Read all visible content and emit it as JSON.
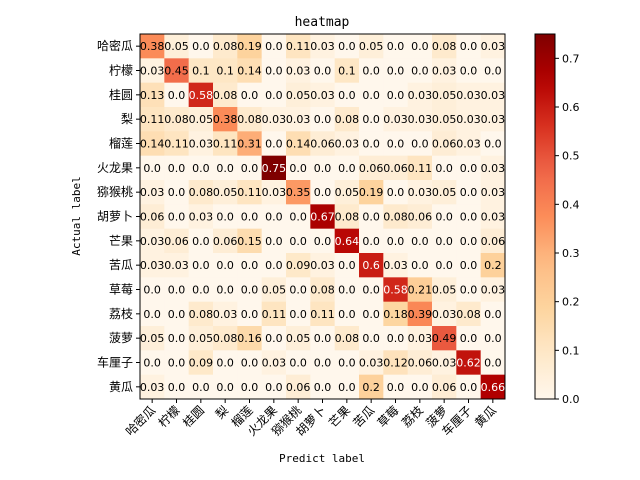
{
  "chart_data": {
    "type": "heatmap",
    "title": "heatmap",
    "xlabel": "Predict label",
    "ylabel": "Actual label",
    "labels": [
      "哈密瓜",
      "柠檬",
      "桂圆",
      "梨",
      "榴莲",
      "火龙果",
      "猕猴桃",
      "胡萝卜",
      "芒果",
      "苦瓜",
      "草莓",
      "荔枝",
      "菠萝",
      "车厘子",
      "黄瓜"
    ],
    "matrix": [
      [
        0.38,
        0.05,
        0.0,
        0.08,
        0.19,
        0.0,
        0.11,
        0.03,
        0.0,
        0.05,
        0.0,
        0.0,
        0.08,
        0.0,
        0.03
      ],
      [
        0.03,
        0.45,
        0.1,
        0.1,
        0.14,
        0.0,
        0.03,
        0.0,
        0.1,
        0.0,
        0.0,
        0.0,
        0.03,
        0.0,
        0.0
      ],
      [
        0.13,
        0.0,
        0.58,
        0.08,
        0.0,
        0.0,
        0.05,
        0.03,
        0.0,
        0.0,
        0.0,
        0.03,
        0.05,
        0.03,
        0.03
      ],
      [
        0.11,
        0.08,
        0.05,
        0.38,
        0.08,
        0.03,
        0.03,
        0.0,
        0.08,
        0.0,
        0.03,
        0.03,
        0.05,
        0.03,
        0.03
      ],
      [
        0.14,
        0.11,
        0.03,
        0.11,
        0.31,
        0.0,
        0.14,
        0.06,
        0.03,
        0.0,
        0.0,
        0.0,
        0.06,
        0.03,
        0.0
      ],
      [
        0.0,
        0.0,
        0.0,
        0.0,
        0.0,
        0.75,
        0.0,
        0.0,
        0.0,
        0.06,
        0.06,
        0.11,
        0.0,
        0.0,
        0.03
      ],
      [
        0.03,
        0.0,
        0.08,
        0.05,
        0.11,
        0.03,
        0.35,
        0.0,
        0.05,
        0.19,
        0.0,
        0.03,
        0.05,
        0.0,
        0.03
      ],
      [
        0.06,
        0.0,
        0.03,
        0.0,
        0.0,
        0.0,
        0.0,
        0.67,
        0.08,
        0.0,
        0.08,
        0.06,
        0.0,
        0.0,
        0.03
      ],
      [
        0.03,
        0.06,
        0.0,
        0.06,
        0.15,
        0.0,
        0.0,
        0.0,
        0.64,
        0.0,
        0.0,
        0.0,
        0.0,
        0.0,
        0.06
      ],
      [
        0.03,
        0.03,
        0.0,
        0.0,
        0.0,
        0.0,
        0.09,
        0.03,
        0.0,
        0.6,
        0.03,
        0.0,
        0.0,
        0.0,
        0.2
      ],
      [
        0.0,
        0.0,
        0.0,
        0.0,
        0.0,
        0.05,
        0.0,
        0.08,
        0.0,
        0.0,
        0.58,
        0.21,
        0.05,
        0.0,
        0.03
      ],
      [
        0.0,
        0.0,
        0.08,
        0.03,
        0.0,
        0.11,
        0.0,
        0.11,
        0.0,
        0.0,
        0.18,
        0.39,
        0.03,
        0.08,
        0.0
      ],
      [
        0.05,
        0.0,
        0.05,
        0.08,
        0.16,
        0.0,
        0.05,
        0.0,
        0.08,
        0.0,
        0.0,
        0.03,
        0.49,
        0.0,
        0.0
      ],
      [
        0.0,
        0.0,
        0.09,
        0.0,
        0.0,
        0.03,
        0.0,
        0.0,
        0.0,
        0.03,
        0.12,
        0.06,
        0.03,
        0.62,
        0.0
      ],
      [
        0.03,
        0.0,
        0.0,
        0.0,
        0.0,
        0.0,
        0.06,
        0.0,
        0.0,
        0.2,
        0.0,
        0.0,
        0.06,
        0.0,
        0.66
      ]
    ],
    "cell_text": [
      [
        "0.38",
        "0.05",
        "0.0",
        "0.08",
        "0.19",
        "0.0",
        "0.11",
        "0.03",
        "0.0",
        "0.05",
        "0.0",
        "0.0",
        "0.08",
        "0.0",
        "0.03"
      ],
      [
        "0.03",
        "0.45",
        "0.1",
        "0.1",
        "0.14",
        "0.0",
        "0.03",
        "0.0",
        "0.1",
        "0.0",
        "0.0",
        "0.0",
        "0.03",
        "0.0",
        "0.0"
      ],
      [
        "0.13",
        "0.0",
        "0.58",
        "0.08",
        "0.0",
        "0.0",
        "0.05",
        "0.03",
        "0.0",
        "0.0",
        "0.0",
        "0.03",
        "0.05",
        "0.03",
        "0.03"
      ],
      [
        "0.11",
        "0.08",
        "0.05",
        "0.38",
        "0.08",
        "0.03",
        "0.03",
        "0.0",
        "0.08",
        "0.0",
        "0.03",
        "0.03",
        "0.05",
        "0.03",
        "0.03"
      ],
      [
        "0.14",
        "0.11",
        "0.03",
        "0.11",
        "0.31",
        "0.0",
        "0.14",
        "0.06",
        "0.03",
        "0.0",
        "0.0",
        "0.0",
        "0.06",
        "0.03",
        "0.0"
      ],
      [
        "0.0",
        "0.0",
        "0.0",
        "0.0",
        "0.0",
        "0.75",
        "0.0",
        "0.0",
        "0.0",
        "0.06",
        "0.06",
        "0.11",
        "0.0",
        "0.0",
        "0.03"
      ],
      [
        "0.03",
        "0.0",
        "0.08",
        "0.05",
        "0.11",
        "0.03",
        "0.35",
        "0.0",
        "0.05",
        "0.19",
        "0.0",
        "0.03",
        "0.05",
        "0.0",
        "0.03"
      ],
      [
        "0.06",
        "0.0",
        "0.03",
        "0.0",
        "0.0",
        "0.0",
        "0.0",
        "0.67",
        "0.08",
        "0.0",
        "0.08",
        "0.06",
        "0.0",
        "0.0",
        "0.03"
      ],
      [
        "0.03",
        "0.06",
        "0.0",
        "0.06",
        "0.15",
        "0.0",
        "0.0",
        "0.0",
        "0.64",
        "0.0",
        "0.0",
        "0.0",
        "0.0",
        "0.0",
        "0.06"
      ],
      [
        "0.03",
        "0.03",
        "0.0",
        "0.0",
        "0.0",
        "0.0",
        "0.09",
        "0.03",
        "0.0",
        "0.6",
        "0.03",
        "0.0",
        "0.0",
        "0.0",
        "0.2"
      ],
      [
        "0.0",
        "0.0",
        "0.0",
        "0.0",
        "0.0",
        "0.05",
        "0.0",
        "0.08",
        "0.0",
        "0.0",
        "0.58",
        "0.21",
        "0.05",
        "0.0",
        "0.03"
      ],
      [
        "0.0",
        "0.0",
        "0.08",
        "0.03",
        "0.0",
        "0.11",
        "0.0",
        "0.11",
        "0.0",
        "0.0",
        "0.18",
        "0.39",
        "0.03",
        "0.08",
        "0.0"
      ],
      [
        "0.05",
        "0.0",
        "0.05",
        "0.08",
        "0.16",
        "0.0",
        "0.05",
        "0.0",
        "0.08",
        "0.0",
        "0.0",
        "0.03",
        "0.49",
        "0.0",
        "0.0"
      ],
      [
        "0.0",
        "0.0",
        "0.09",
        "0.0",
        "0.0",
        "0.03",
        "0.0",
        "0.0",
        "0.0",
        "0.03",
        "0.12",
        "0.06",
        "0.03",
        "0.62",
        "0.0"
      ],
      [
        "0.03",
        "0.0",
        "0.0",
        "0.0",
        "0.0",
        "0.0",
        "0.06",
        "0.0",
        "0.0",
        "0.2",
        "0.0",
        "0.0",
        "0.06",
        "0.0",
        "0.66"
      ]
    ],
    "colorbar": {
      "colormap": "OrRd",
      "range": [
        0,
        0.75
      ],
      "ticks": [
        0.0,
        0.1,
        0.2,
        0.3,
        0.4,
        0.5,
        0.6,
        0.7
      ],
      "tick_labels": [
        "0.0",
        "0.1",
        "0.2",
        "0.3",
        "0.4",
        "0.5",
        "0.6",
        "0.7"
      ]
    },
    "text_color_threshold": 0.55,
    "colors": {
      "text_dark": "#000000",
      "text_light": "#ffffff"
    }
  }
}
